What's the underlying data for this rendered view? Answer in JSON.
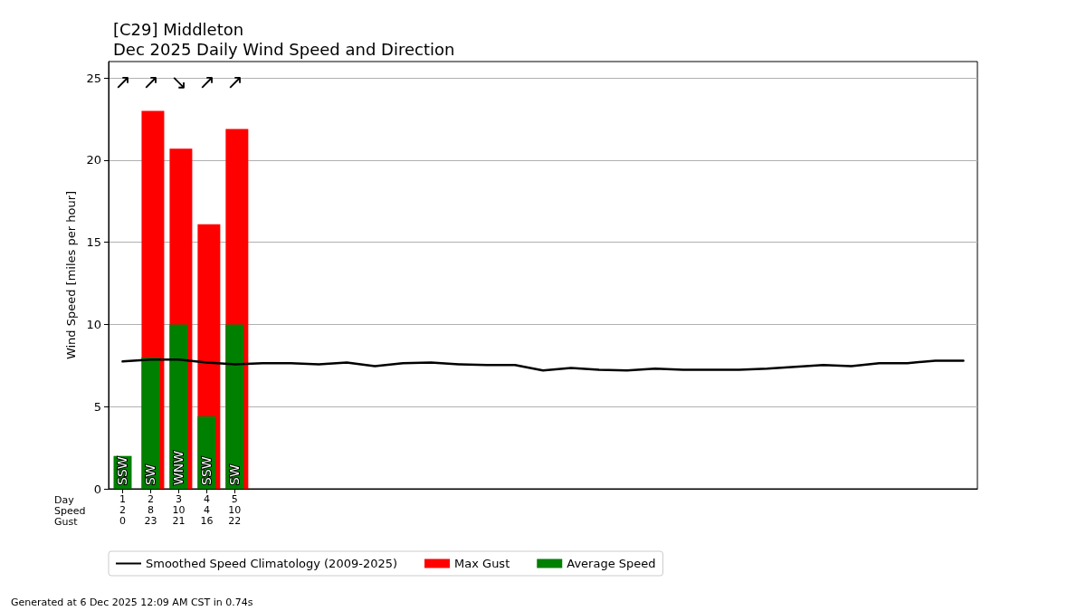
{
  "chart_data": {
    "type": "bar",
    "title": "[C29] Middleton",
    "subtitle": "Dec 2025 Daily Wind Speed and Direction",
    "ylabel": "Wind Speed [miles per hour]",
    "xlim": [
      0.5,
      31.5
    ],
    "xticks": [
      1,
      2,
      3,
      4,
      5
    ],
    "ylim": [
      0,
      26
    ],
    "yticks": [
      0,
      5,
      10,
      15,
      20,
      25
    ],
    "grid": "y",
    "legend": "bottom",
    "series": [
      {
        "name": "Smoothed Speed Climatology (2009-2025)",
        "type": "line",
        "color": "#000000",
        "marker": "none",
        "x": [
          1,
          2,
          3,
          4,
          5,
          6,
          7,
          8,
          9,
          10,
          11,
          12,
          13,
          14,
          15,
          16,
          17,
          18,
          19,
          20,
          21,
          22,
          23,
          24,
          25,
          26,
          27,
          28,
          29,
          30,
          31
        ],
        "values": [
          7.75,
          7.86,
          7.86,
          7.69,
          7.58,
          7.64,
          7.64,
          7.58,
          7.69,
          7.47,
          7.64,
          7.69,
          7.58,
          7.53,
          7.53,
          7.2,
          7.36,
          7.25,
          7.2,
          7.31,
          7.25,
          7.25,
          7.25,
          7.31,
          7.42,
          7.53,
          7.47,
          7.64,
          7.64,
          7.8,
          7.8
        ]
      },
      {
        "name": "Max Gust",
        "color": "#ff0000",
        "x": [
          1,
          2,
          3,
          4,
          5
        ],
        "values": [
          0,
          23.0,
          20.7,
          16.1,
          21.9
        ],
        "value_labels": [
          "0",
          "23",
          "21",
          "16",
          "22"
        ]
      },
      {
        "name": "Average Speed",
        "color": "#008000",
        "x": [
          1,
          2,
          3,
          4,
          5
        ],
        "values": [
          2.0,
          8.0,
          10.0,
          4.4,
          10.0
        ],
        "value_labels": [
          "2",
          "8",
          "10",
          "4",
          "10"
        ]
      }
    ],
    "annotations": [
      "Day",
      "Speed",
      "Gust",
      "Generated at 6 Dec 2025 12:09 AM CST in 0.74s",
      "↗",
      "↗",
      "↘",
      "↗",
      "↗",
      {
        "text": "SSW",
        "x": 1,
        "y": 0
      },
      {
        "text": "SW",
        "x": 2,
        "y": 0
      },
      {
        "text": "WNW",
        "x": 3,
        "y": 0
      },
      {
        "text": "SSW",
        "x": 4,
        "y": 0
      },
      {
        "text": "SW",
        "x": 5,
        "y": 0
      }
    ]
  }
}
